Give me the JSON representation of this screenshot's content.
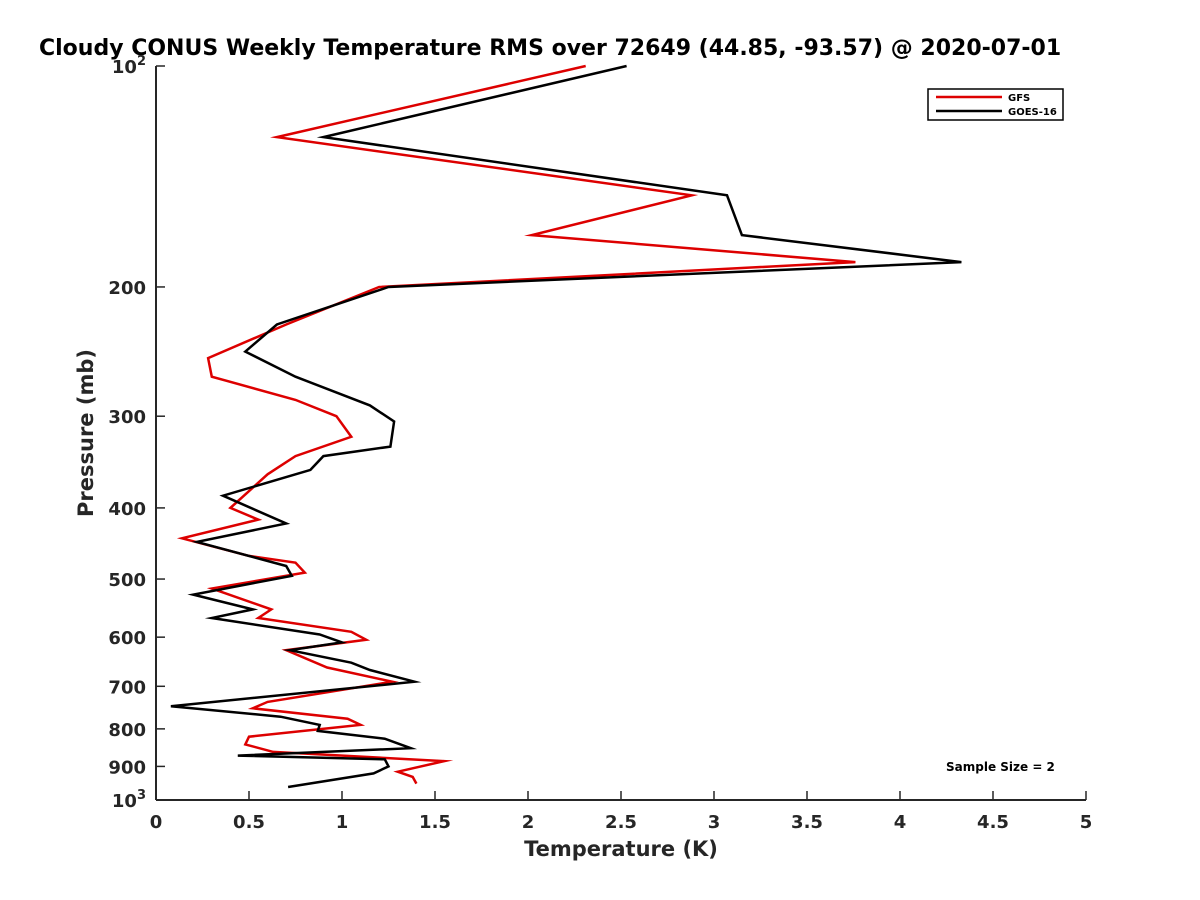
{
  "chart_data": {
    "type": "line",
    "title": "Cloudy CONUS Weekly Temperature RMS over 72649 (44.85, -93.57) @ 2020-07-01",
    "xlabel": "Temperature (K)",
    "ylabel": "Pressure (mb)",
    "xlim": [
      0,
      5
    ],
    "ylim": [
      100,
      1000
    ],
    "y_scale": "log",
    "y_reversed": true,
    "x_ticks": [
      "0",
      "0.5",
      "1",
      "1.5",
      "2",
      "2.5",
      "3",
      "3.5",
      "4",
      "4.5",
      "5"
    ],
    "y_ticks": [
      {
        "value": 100,
        "base": "10",
        "exp": "2"
      },
      {
        "value": 200,
        "label": "200"
      },
      {
        "value": 300,
        "label": "300"
      },
      {
        "value": 400,
        "label": "400"
      },
      {
        "value": 500,
        "label": "500"
      },
      {
        "value": 600,
        "label": "600"
      },
      {
        "value": 700,
        "label": "700"
      },
      {
        "value": 800,
        "label": "800"
      },
      {
        "value": 900,
        "label": "900"
      },
      {
        "value": 1000,
        "base": "10",
        "exp": "3"
      }
    ],
    "legend_position": "top-right",
    "annotation": "Sample Size = 2",
    "series": [
      {
        "name": "GFS",
        "color": "#dd0000",
        "points": [
          [
            2.31,
            100
          ],
          [
            0.65,
            125
          ],
          [
            2.88,
            150
          ],
          [
            2.02,
            170
          ],
          [
            3.76,
            185
          ],
          [
            1.2,
            200
          ],
          [
            0.7,
            225
          ],
          [
            0.28,
            250
          ],
          [
            0.3,
            265
          ],
          [
            0.75,
            285
          ],
          [
            0.97,
            300
          ],
          [
            1.05,
            320
          ],
          [
            0.75,
            340
          ],
          [
            0.6,
            360
          ],
          [
            0.4,
            400
          ],
          [
            0.55,
            415
          ],
          [
            0.14,
            440
          ],
          [
            0.5,
            465
          ],
          [
            0.75,
            475
          ],
          [
            0.8,
            490
          ],
          [
            0.3,
            515
          ],
          [
            0.62,
            550
          ],
          [
            0.55,
            565
          ],
          [
            1.05,
            590
          ],
          [
            1.13,
            605
          ],
          [
            0.7,
            625
          ],
          [
            0.92,
            660
          ],
          [
            1.27,
            690
          ],
          [
            0.6,
            735
          ],
          [
            0.52,
            750
          ],
          [
            1.03,
            775
          ],
          [
            1.1,
            790
          ],
          [
            0.5,
            820
          ],
          [
            0.48,
            840
          ],
          [
            0.63,
            860
          ],
          [
            1.55,
            885
          ],
          [
            1.3,
            915
          ],
          [
            1.38,
            930
          ],
          [
            1.4,
            950
          ]
        ]
      },
      {
        "name": "GOES-16",
        "color": "#000000",
        "points": [
          [
            2.53,
            100
          ],
          [
            0.9,
            125
          ],
          [
            3.07,
            150
          ],
          [
            3.15,
            170
          ],
          [
            4.33,
            185
          ],
          [
            1.25,
            200
          ],
          [
            0.65,
            225
          ],
          [
            0.48,
            245
          ],
          [
            0.75,
            265
          ],
          [
            1.15,
            290
          ],
          [
            1.28,
            305
          ],
          [
            1.26,
            330
          ],
          [
            0.9,
            340
          ],
          [
            0.83,
            355
          ],
          [
            0.36,
            385
          ],
          [
            0.7,
            420
          ],
          [
            0.22,
            445
          ],
          [
            0.7,
            480
          ],
          [
            0.73,
            495
          ],
          [
            0.2,
            525
          ],
          [
            0.52,
            550
          ],
          [
            0.3,
            565
          ],
          [
            0.88,
            595
          ],
          [
            1.0,
            610
          ],
          [
            0.72,
            625
          ],
          [
            1.05,
            650
          ],
          [
            1.15,
            665
          ],
          [
            1.39,
            690
          ],
          [
            0.08,
            745
          ],
          [
            0.67,
            770
          ],
          [
            0.88,
            790
          ],
          [
            0.87,
            805
          ],
          [
            1.23,
            825
          ],
          [
            1.37,
            850
          ],
          [
            0.44,
            870
          ],
          [
            1.23,
            880
          ],
          [
            1.25,
            900
          ],
          [
            1.17,
            920
          ],
          [
            0.71,
            960
          ]
        ]
      }
    ]
  }
}
